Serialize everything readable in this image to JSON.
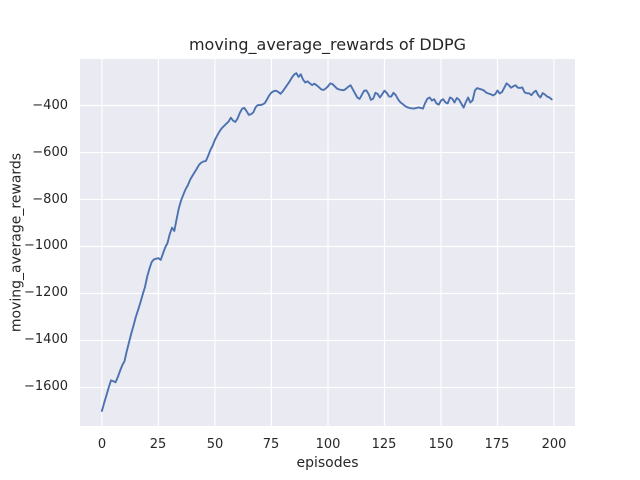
{
  "chart_data": {
    "type": "line",
    "title": "moving_average_rewards of DDPG",
    "xlabel": "episodes",
    "ylabel": "moving_average_rewards",
    "grid": true,
    "legend": false,
    "x_axis": {
      "tick_values": [
        0,
        25,
        50,
        75,
        100,
        125,
        150,
        175,
        200
      ],
      "tick_labels": [
        "0",
        "25",
        "50",
        "75",
        "100",
        "125",
        "150",
        "175",
        "200"
      ],
      "lim": [
        -9.7,
        209.3
      ]
    },
    "y_axis": {
      "tick_values": [
        -400,
        -600,
        -800,
        -1000,
        -1200,
        -1400,
        -1600
      ],
      "tick_labels": [
        "−400",
        "−600",
        "−800",
        "−1000",
        "−1200",
        "−1400",
        "−1600"
      ],
      "lim": [
        -1764,
        -202
      ]
    },
    "colors": {
      "line": "#4c72b0",
      "axes_background": "#eaeaf2",
      "grid": "#ffffff",
      "text": "#262626",
      "figure_background": "#ffffff"
    },
    "series": [
      {
        "name": "moving_average_rewards",
        "x_is_index": true,
        "x_start": 0,
        "x_step": 1,
        "values": [
          -1700,
          -1665,
          -1634,
          -1600,
          -1570,
          -1573,
          -1578,
          -1557,
          -1530,
          -1505,
          -1488,
          -1445,
          -1408,
          -1370,
          -1335,
          -1300,
          -1270,
          -1240,
          -1205,
          -1174,
          -1130,
          -1095,
          -1066,
          -1055,
          -1052,
          -1050,
          -1057,
          -1030,
          -1004,
          -985,
          -948,
          -920,
          -934,
          -886,
          -838,
          -805,
          -780,
          -756,
          -740,
          -716,
          -700,
          -684,
          -668,
          -652,
          -643,
          -638,
          -636,
          -614,
          -589,
          -570,
          -546,
          -528,
          -510,
          -497,
          -487,
          -478,
          -469,
          -452,
          -464,
          -470,
          -456,
          -432,
          -414,
          -410,
          -424,
          -440,
          -437,
          -429,
          -407,
          -398,
          -398,
          -396,
          -390,
          -375,
          -357,
          -345,
          -339,
          -337,
          -342,
          -350,
          -340,
          -326,
          -312,
          -298,
          -282,
          -269,
          -262,
          -278,
          -267,
          -290,
          -302,
          -297,
          -306,
          -313,
          -307,
          -314,
          -322,
          -331,
          -334,
          -328,
          -318,
          -306,
          -309,
          -318,
          -328,
          -332,
          -334,
          -335,
          -329,
          -320,
          -314,
          -331,
          -349,
          -366,
          -372,
          -354,
          -337,
          -336,
          -351,
          -376,
          -371,
          -346,
          -351,
          -366,
          -352,
          -337,
          -346,
          -361,
          -362,
          -346,
          -356,
          -373,
          -386,
          -393,
          -401,
          -407,
          -410,
          -412,
          -413,
          -411,
          -408,
          -410,
          -413,
          -390,
          -371,
          -366,
          -379,
          -373,
          -391,
          -396,
          -379,
          -373,
          -387,
          -391,
          -366,
          -371,
          -387,
          -368,
          -375,
          -392,
          -409,
          -386,
          -366,
          -387,
          -378,
          -336,
          -326,
          -329,
          -332,
          -336,
          -345,
          -349,
          -352,
          -357,
          -352,
          -336,
          -349,
          -343,
          -324,
          -306,
          -313,
          -324,
          -318,
          -314,
          -324,
          -325,
          -323,
          -344,
          -348,
          -348,
          -356,
          -344,
          -337,
          -356,
          -366,
          -347,
          -353,
          -362,
          -366,
          -374
        ]
      }
    ]
  }
}
